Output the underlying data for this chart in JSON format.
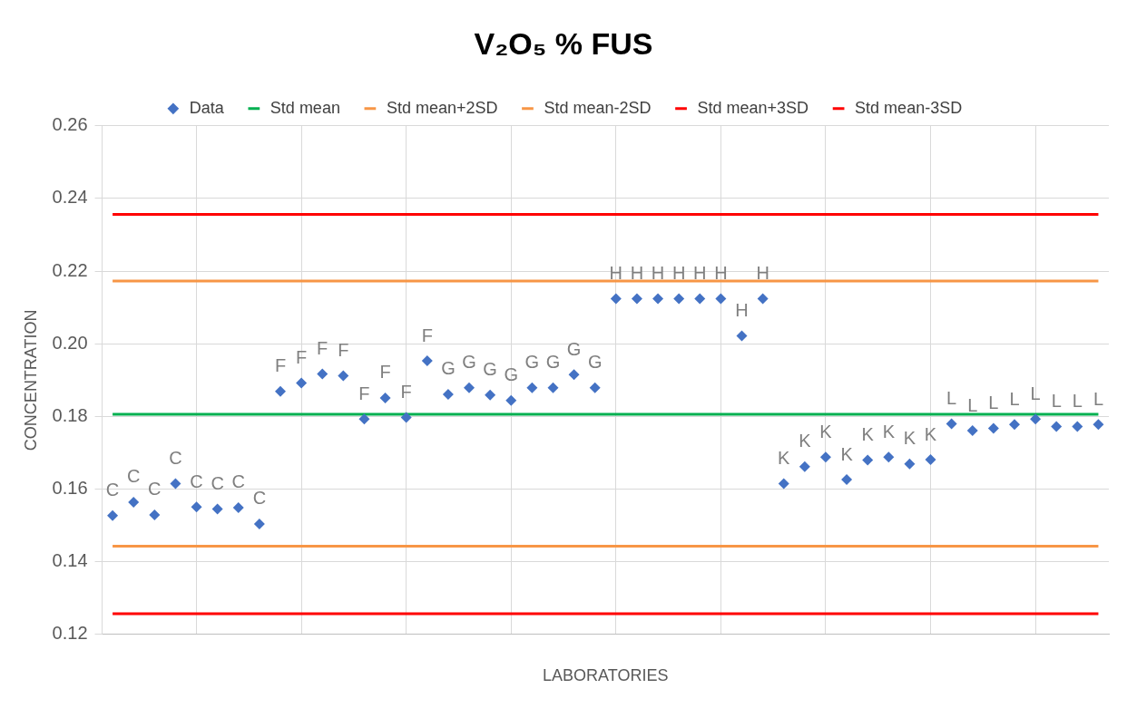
{
  "chart_data": {
    "type": "scatter",
    "title": "V₂O₅ % FUS",
    "xlabel": "LABORATORIES",
    "ylabel": "CONCENTRATION",
    "categories": [
      null,
      null,
      null,
      null,
      null,
      null,
      null,
      null,
      null,
      null,
      null,
      null,
      null,
      null,
      null,
      null,
      null,
      null,
      null,
      null,
      null,
      null,
      null,
      null,
      null,
      null,
      null,
      null,
      null,
      null,
      null,
      null,
      null,
      null,
      null,
      null,
      null,
      null,
      null,
      null,
      null,
      null,
      null,
      null,
      null,
      null,
      null,
      null
    ],
    "ylim": [
      0.12,
      0.26
    ],
    "yticks": [
      0.12,
      0.14,
      0.16,
      0.18,
      {
        "value": 0.2,
        "label": "0.20"
      },
      0.22,
      0.24,
      0.26
    ],
    "grid": true,
    "legend": "top",
    "series": [
      {
        "name": "Data",
        "color": "#4472c4",
        "marker": "diamond",
        "values": [
          0.1527,
          0.1564,
          0.1529,
          0.1615,
          0.1551,
          0.1545,
          0.1549,
          0.1504,
          0.1869,
          0.1892,
          0.1917,
          0.1912,
          0.1793,
          0.1851,
          0.1797,
          0.1953,
          0.1861,
          0.1879,
          0.1859,
          0.1844,
          0.1879,
          0.1879,
          0.1915,
          0.1879,
          0.2124,
          0.2124,
          0.2124,
          0.2124,
          0.2124,
          0.2124,
          0.2022,
          0.2124,
          0.1615,
          0.1662,
          0.1688,
          0.1626,
          0.168,
          0.1688,
          0.1669,
          0.1681,
          0.178,
          0.1761,
          0.1767,
          0.1778,
          0.1793,
          0.1772,
          0.1772,
          0.1778
        ],
        "value_labels": [
          "C",
          "C",
          "C",
          "C",
          "C",
          "C",
          "C",
          "C",
          "F",
          "F",
          "F",
          "F",
          "F",
          "F",
          "F",
          "F",
          "G",
          "G",
          "G",
          "G",
          "G",
          "G",
          "G",
          "G",
          "H",
          "H",
          "H",
          "H",
          "H",
          "H",
          "H",
          "H",
          "K",
          "K",
          "K",
          "K",
          "K",
          "K",
          "K",
          "K",
          "L",
          "L",
          "L",
          "L",
          "L",
          "L",
          "L",
          "L"
        ]
      },
      {
        "name": "Std mean",
        "type": "line",
        "color": "#00b050",
        "values": [
          0.1806,
          0.1806,
          0.1806,
          0.1806,
          0.1806,
          0.1806,
          0.1806,
          0.1806,
          0.1806,
          0.1806,
          0.1806,
          0.1806,
          0.1806,
          0.1806,
          0.1806,
          0.1806,
          0.1806,
          0.1806,
          0.1806,
          0.1806,
          0.1806,
          0.1806,
          0.1806,
          0.1806,
          0.1806,
          0.1806,
          0.1806,
          0.1806,
          0.1806,
          0.1806,
          0.1806,
          0.1806,
          0.1806,
          0.1806,
          0.1806,
          0.1806,
          0.1806,
          0.1806,
          0.1806,
          0.1806,
          0.1806,
          0.1806,
          0.1806,
          0.1806,
          0.1806,
          0.1806,
          0.1806,
          0.1806
        ]
      },
      {
        "name": "Std mean+2SD",
        "type": "line",
        "color": "#f79646",
        "values": [
          0.2173,
          0.2173,
          0.2173,
          0.2173,
          0.2173,
          0.2173,
          0.2173,
          0.2173,
          0.2173,
          0.2173,
          0.2173,
          0.2173,
          0.2173,
          0.2173,
          0.2173,
          0.2173,
          0.2173,
          0.2173,
          0.2173,
          0.2173,
          0.2173,
          0.2173,
          0.2173,
          0.2173,
          0.2173,
          0.2173,
          0.2173,
          0.2173,
          0.2173,
          0.2173,
          0.2173,
          0.2173,
          0.2173,
          0.2173,
          0.2173,
          0.2173,
          0.2173,
          0.2173,
          0.2173,
          0.2173,
          0.2173,
          0.2173,
          0.2173,
          0.2173,
          0.2173,
          0.2173,
          0.2173,
          0.2173
        ]
      },
      {
        "name": "Std mean-2SD",
        "type": "line",
        "color": "#f79646",
        "values": [
          0.1443,
          0.1443,
          0.1443,
          0.1443,
          0.1443,
          0.1443,
          0.1443,
          0.1443,
          0.1443,
          0.1443,
          0.1443,
          0.1443,
          0.1443,
          0.1443,
          0.1443,
          0.1443,
          0.1443,
          0.1443,
          0.1443,
          0.1443,
          0.1443,
          0.1443,
          0.1443,
          0.1443,
          0.1443,
          0.1443,
          0.1443,
          0.1443,
          0.1443,
          0.1443,
          0.1443,
          0.1443,
          0.1443,
          0.1443,
          0.1443,
          0.1443,
          0.1443,
          0.1443,
          0.1443,
          0.1443,
          0.1443,
          0.1443,
          0.1443,
          0.1443,
          0.1443,
          0.1443,
          0.1443,
          0.1443
        ]
      },
      {
        "name": "Std mean+3SD",
        "type": "line",
        "color": "#ff0000",
        "values": [
          0.2356,
          0.2356,
          0.2356,
          0.2356,
          0.2356,
          0.2356,
          0.2356,
          0.2356,
          0.2356,
          0.2356,
          0.2356,
          0.2356,
          0.2356,
          0.2356,
          0.2356,
          0.2356,
          0.2356,
          0.2356,
          0.2356,
          0.2356,
          0.2356,
          0.2356,
          0.2356,
          0.2356,
          0.2356,
          0.2356,
          0.2356,
          0.2356,
          0.2356,
          0.2356,
          0.2356,
          0.2356,
          0.2356,
          0.2356,
          0.2356,
          0.2356,
          0.2356,
          0.2356,
          0.2356,
          0.2356,
          0.2356,
          0.2356,
          0.2356,
          0.2356,
          0.2356,
          0.2356,
          0.2356,
          0.2356
        ]
      },
      {
        "name": "Std mean-3SD",
        "type": "line",
        "color": "#ff0000",
        "values": [
          0.1257,
          0.1257,
          0.1257,
          0.1257,
          0.1257,
          0.1257,
          0.1257,
          0.1257,
          0.1257,
          0.1257,
          0.1257,
          0.1257,
          0.1257,
          0.1257,
          0.1257,
          0.1257,
          0.1257,
          0.1257,
          0.1257,
          0.1257,
          0.1257,
          0.1257,
          0.1257,
          0.1257,
          0.1257,
          0.1257,
          0.1257,
          0.1257,
          0.1257,
          0.1257,
          0.1257,
          0.1257,
          0.1257,
          0.1257,
          0.1257,
          0.1257,
          0.1257,
          0.1257,
          0.1257,
          0.1257,
          0.1257,
          0.1257,
          0.1257,
          0.1257,
          0.1257,
          0.1257,
          0.1257,
          0.1257
        ]
      }
    ]
  }
}
